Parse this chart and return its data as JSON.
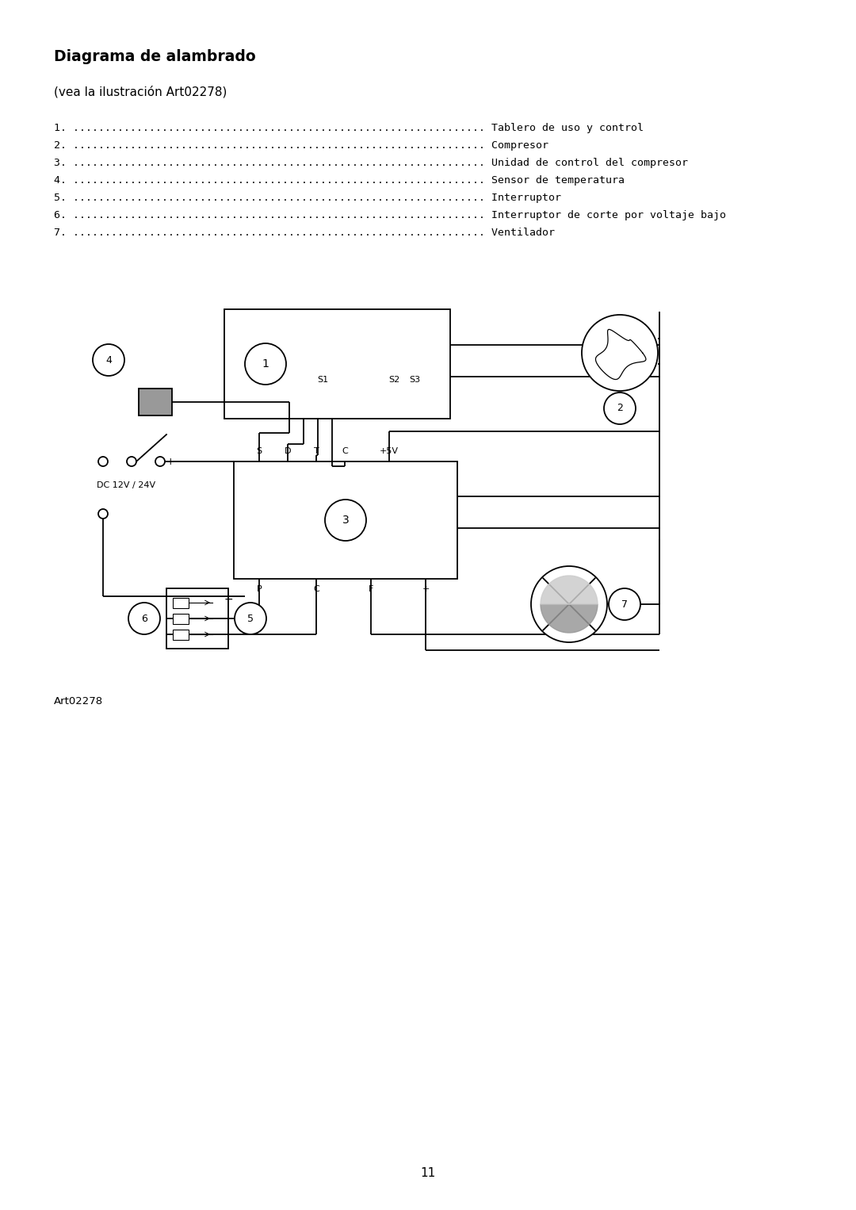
{
  "title": "Diagrama de alambrado",
  "subtitle": "(vea la ilustración Art02278)",
  "items": [
    {
      "num": "1",
      "label": "Tablero de uso y control"
    },
    {
      "num": "2",
      "label": "Compresor"
    },
    {
      "num": "3",
      "label": "Unidad de control del compresor"
    },
    {
      "num": "4",
      "label": "Sensor de temperatura"
    },
    {
      "num": "5",
      "label": "Interruptor"
    },
    {
      "num": "6",
      "label": "Interruptor de corte por voltaje bajo"
    },
    {
      "num": "7",
      "label": "Ventilador"
    }
  ],
  "art_label": "Art02278",
  "page_num": "11",
  "background": "#ffffff",
  "line_color": "#000000",
  "gray_color": "#888888"
}
